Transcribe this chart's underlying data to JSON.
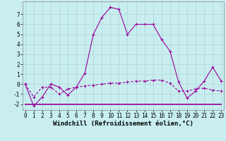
{
  "xlabel": "Windchill (Refroidissement éolien,°C)",
  "line1_x": [
    0,
    1,
    2,
    3,
    4,
    5,
    6,
    7,
    8,
    9,
    10,
    11,
    12,
    13,
    14,
    15,
    16,
    17,
    18,
    19,
    20,
    21,
    22,
    23
  ],
  "line1_y": [
    0,
    -2.2,
    -1.3,
    0,
    -0.3,
    -1.1,
    -0.3,
    1.1,
    5.0,
    6.7,
    7.7,
    7.5,
    5.0,
    6.0,
    6.0,
    6.0,
    4.5,
    3.3,
    0.2,
    -1.4,
    -0.7,
    0.3,
    1.7,
    0.3
  ],
  "line2_x": [
    0,
    1,
    2,
    3,
    4,
    5,
    6,
    7,
    8,
    9,
    10,
    11,
    12,
    13,
    14,
    15,
    16,
    17,
    18,
    19,
    20,
    21,
    22,
    23
  ],
  "line2_y": [
    0,
    -1.3,
    -0.3,
    -0.3,
    -1.0,
    -0.5,
    -0.3,
    -0.2,
    -0.1,
    0.0,
    0.1,
    0.1,
    0.2,
    0.3,
    0.3,
    0.4,
    0.4,
    0.1,
    -0.7,
    -0.7,
    -0.5,
    -0.4,
    -0.6,
    -0.7
  ],
  "line3_x": [
    0,
    1,
    2,
    3,
    4,
    5,
    6,
    7,
    8,
    9,
    10,
    11,
    12,
    13,
    14,
    15,
    16,
    17,
    18,
    19,
    20,
    21,
    22,
    23
  ],
  "line3_y": [
    -2.0,
    -2.0,
    -2.0,
    -2.0,
    -2.0,
    -2.0,
    -2.0,
    -2.0,
    -2.0,
    -2.0,
    -2.0,
    -2.0,
    -2.0,
    -2.0,
    -2.0,
    -2.0,
    -2.0,
    -2.0,
    -2.0,
    -2.0,
    -2.0,
    -2.0,
    -2.0,
    -2.0
  ],
  "line_color": "#990099",
  "bg_color": "#c8eef0",
  "grid_color": "#b0d4d8",
  "ylim": [
    -2.6,
    8.3
  ],
  "xlim": [
    -0.3,
    23.3
  ],
  "yticks": [
    -2,
    -1,
    0,
    1,
    2,
    3,
    4,
    5,
    6,
    7
  ],
  "xticks": [
    0,
    1,
    2,
    3,
    4,
    5,
    6,
    7,
    8,
    9,
    10,
    11,
    12,
    13,
    14,
    15,
    16,
    17,
    18,
    19,
    20,
    21,
    22,
    23
  ],
  "label_fontsize": 6.5,
  "tick_fontsize": 5.5
}
